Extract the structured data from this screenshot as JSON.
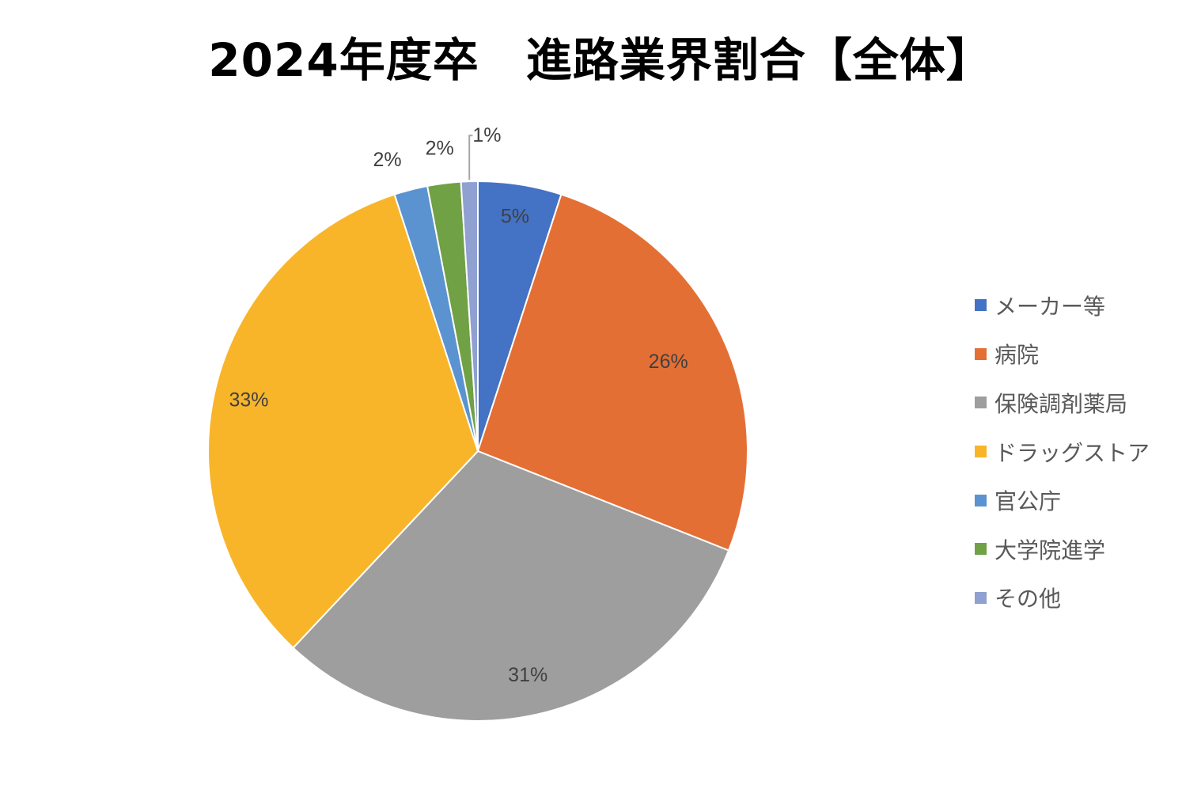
{
  "chart_data": {
    "type": "pie",
    "title": "2024年度卒　進路業界割合【全体】",
    "categories": [
      "メーカー等",
      "病院",
      "保険調剤薬局",
      "ドラッグストア",
      "官公庁",
      "大学院進学",
      "その他"
    ],
    "values": [
      5,
      26,
      31,
      33,
      2,
      2,
      1
    ],
    "labels": [
      "5%",
      "26%",
      "31%",
      "33%",
      "2%",
      "2%",
      "1%"
    ],
    "colors": [
      "#4472C4",
      "#E46F35",
      "#9E9E9E",
      "#F8B52A",
      "#5B93D0",
      "#70A145",
      "#8FA0D1"
    ],
    "start_angle": "12 o'clock",
    "direction": "clockwise",
    "legend": "right"
  }
}
